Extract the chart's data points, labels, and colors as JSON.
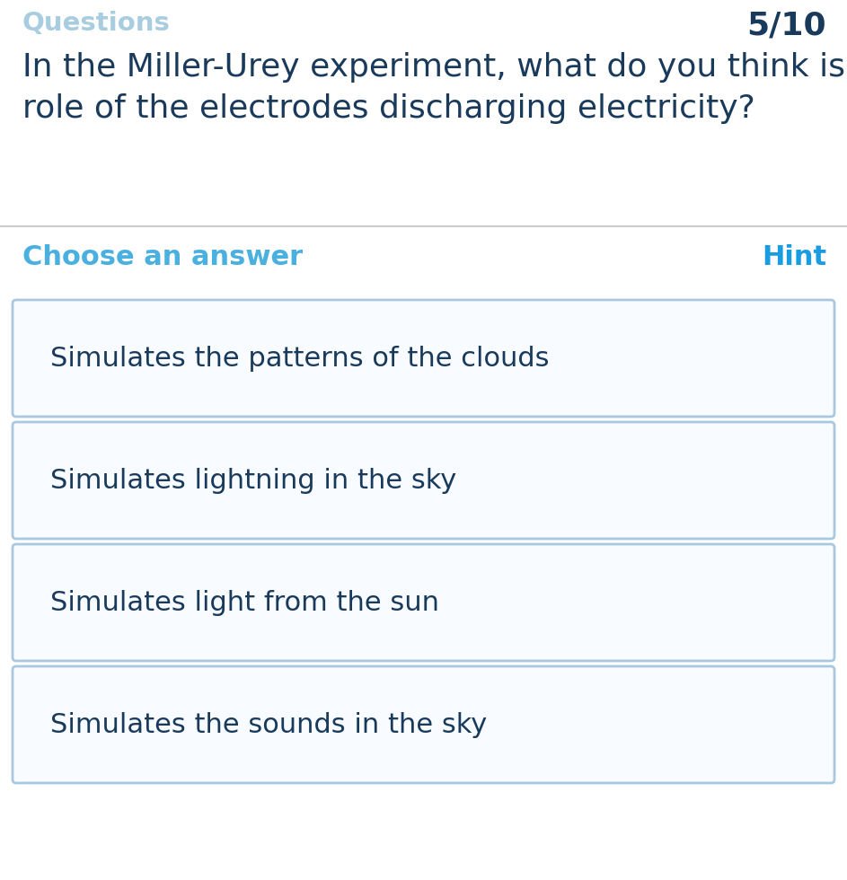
{
  "bg_color": "#ffffff",
  "header_label": "Questions",
  "header_label_color": "#a8cce0",
  "header_label_fontsize": 21,
  "score_label": "5/10",
  "score_label_color": "#1a3a5c",
  "score_label_fontsize": 26,
  "question_text": "In the Miller-Urey experiment, what do you think is the\nrole of the electrodes discharging electricity?",
  "question_color": "#1a3a5c",
  "question_fontsize": 26,
  "divider_color": "#cccccc",
  "choose_label": "Choose an answer",
  "choose_color": "#4ab0e0",
  "choose_fontsize": 22,
  "hint_label": "Hint",
  "hint_color": "#1a9de0",
  "hint_fontsize": 22,
  "answers": [
    "Simulates the patterns of the clouds",
    "Simulates lightning in the sky",
    "Simulates light from the sun",
    "Simulates the sounds in the sky"
  ],
  "answer_color": "#1a3a5c",
  "answer_fontsize": 22,
  "box_border_color": "#a8c8e0",
  "box_bg_color": "#f8fbff"
}
